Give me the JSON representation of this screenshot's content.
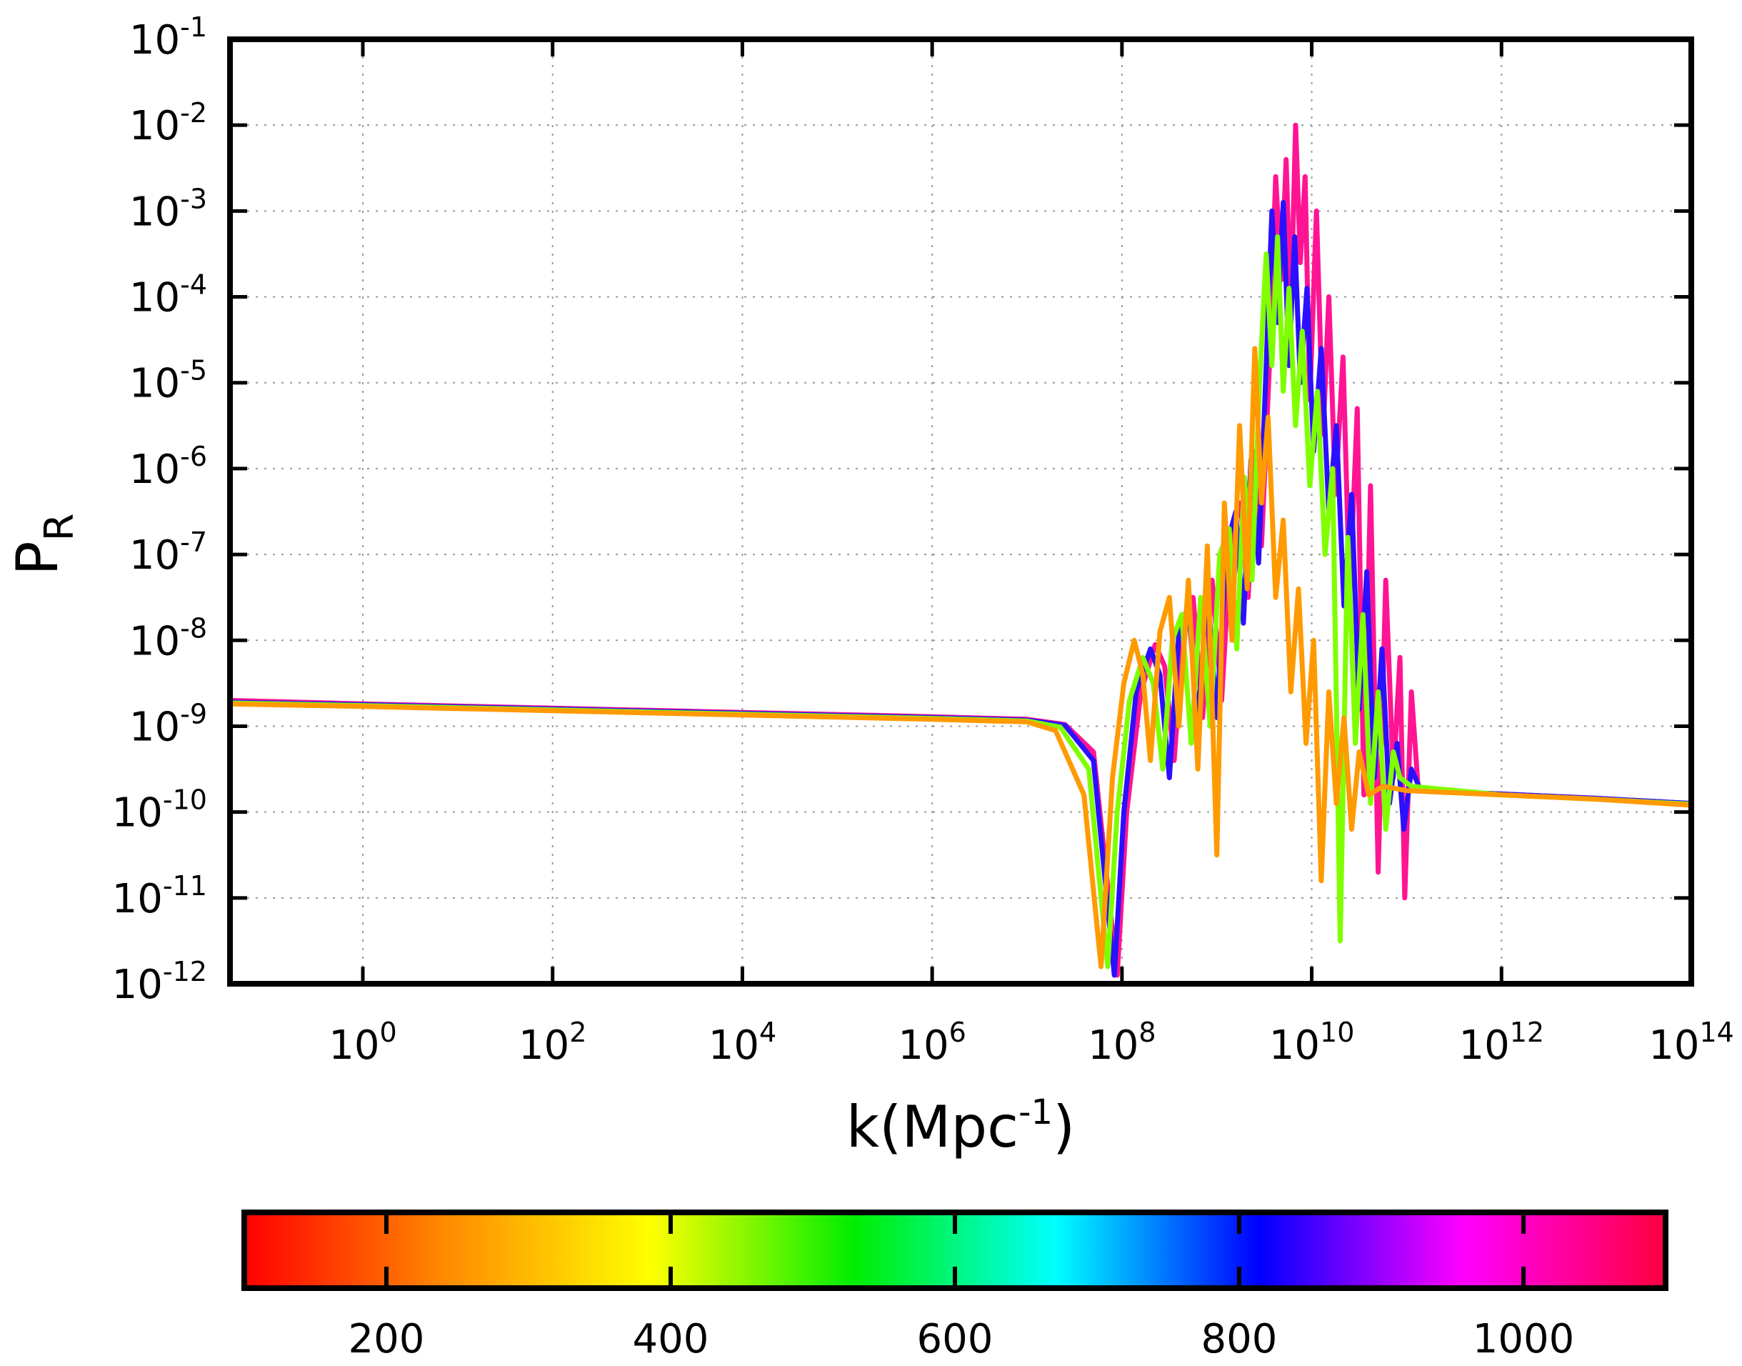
{
  "chart_data": {
    "type": "line",
    "title": "",
    "xlabel_base": "k(Mpc",
    "xlabel_exp": "-1",
    "xlabel_close": ")",
    "ylabel_base": "P",
    "ylabel_sub": "R",
    "x_scale": "log10",
    "y_scale": "log10",
    "xlim_log10": [
      -1.4,
      14
    ],
    "ylim_log10": [
      -12,
      -1
    ],
    "grid": true,
    "x_ticks": [
      {
        "exp": 0,
        "base": "10",
        "sup": "0"
      },
      {
        "exp": 2,
        "base": "10",
        "sup": "2"
      },
      {
        "exp": 4,
        "base": "10",
        "sup": "4"
      },
      {
        "exp": 6,
        "base": "10",
        "sup": "6"
      },
      {
        "exp": 8,
        "base": "10",
        "sup": "8"
      },
      {
        "exp": 10,
        "base": "10",
        "sup": "10"
      },
      {
        "exp": 12,
        "base": "10",
        "sup": "12"
      },
      {
        "exp": 14,
        "base": "10",
        "sup": "14"
      }
    ],
    "y_ticks": [
      {
        "exp": -12,
        "base": "10",
        "sup": "-12"
      },
      {
        "exp": -11,
        "base": "10",
        "sup": "-11"
      },
      {
        "exp": -10,
        "base": "10",
        "sup": "-10"
      },
      {
        "exp": -9,
        "base": "10",
        "sup": "-9"
      },
      {
        "exp": -8,
        "base": "10",
        "sup": "-8"
      },
      {
        "exp": -7,
        "base": "10",
        "sup": "-7"
      },
      {
        "exp": -6,
        "base": "10",
        "sup": "-6"
      },
      {
        "exp": -5,
        "base": "10",
        "sup": "-5"
      },
      {
        "exp": -4,
        "base": "10",
        "sup": "-4"
      },
      {
        "exp": -3,
        "base": "10",
        "sup": "-3"
      },
      {
        "exp": -2,
        "base": "10",
        "sup": "-2"
      },
      {
        "exp": -1,
        "base": "10",
        "sup": "-1"
      }
    ],
    "series": [
      {
        "name": "1050",
        "color": "#ff1493",
        "points_log10": [
          [
            -1.4,
            -8.7
          ],
          [
            0,
            -8.74
          ],
          [
            2,
            -8.79
          ],
          [
            4,
            -8.84
          ],
          [
            6,
            -8.89
          ],
          [
            7,
            -8.92
          ],
          [
            7.4,
            -8.98
          ],
          [
            7.7,
            -9.3
          ],
          [
            7.95,
            -11.9
          ],
          [
            8.05,
            -10.0
          ],
          [
            8.2,
            -8.6
          ],
          [
            8.35,
            -8.05
          ],
          [
            8.45,
            -8.3
          ],
          [
            8.55,
            -9.4
          ],
          [
            8.65,
            -7.9
          ],
          [
            8.75,
            -7.5
          ],
          [
            8.85,
            -8.9
          ],
          [
            8.95,
            -7.3
          ],
          [
            9.05,
            -8.7
          ],
          [
            9.15,
            -6.8
          ],
          [
            9.25,
            -6.4
          ],
          [
            9.33,
            -7.5
          ],
          [
            9.4,
            -5.8
          ],
          [
            9.47,
            -6.9
          ],
          [
            9.55,
            -4.9
          ],
          [
            9.62,
            -2.6
          ],
          [
            9.68,
            -3.8
          ],
          [
            9.73,
            -2.4
          ],
          [
            9.78,
            -4.2
          ],
          [
            9.83,
            -2.0
          ],
          [
            9.88,
            -3.6
          ],
          [
            9.93,
            -2.6
          ],
          [
            9.98,
            -5.2
          ],
          [
            10.05,
            -3.0
          ],
          [
            10.12,
            -5.6
          ],
          [
            10.18,
            -4.0
          ],
          [
            10.25,
            -6.3
          ],
          [
            10.33,
            -4.7
          ],
          [
            10.4,
            -7.5
          ],
          [
            10.48,
            -5.3
          ],
          [
            10.55,
            -9.8
          ],
          [
            10.62,
            -6.2
          ],
          [
            10.7,
            -10.7
          ],
          [
            10.78,
            -7.3
          ],
          [
            10.86,
            -9.6
          ],
          [
            10.93,
            -8.2
          ],
          [
            10.98,
            -11.0
          ],
          [
            11.05,
            -8.6
          ],
          [
            11.12,
            -9.7
          ],
          [
            11.2,
            -9.75
          ],
          [
            12,
            -9.79
          ],
          [
            13,
            -9.84
          ],
          [
            14,
            -9.9
          ]
        ]
      },
      {
        "name": "800",
        "color": "#2a10ff",
        "points_log10": [
          [
            -1.4,
            -8.72
          ],
          [
            0,
            -8.75
          ],
          [
            2,
            -8.8
          ],
          [
            4,
            -8.85
          ],
          [
            6,
            -8.9
          ],
          [
            7,
            -8.93
          ],
          [
            7.4,
            -8.99
          ],
          [
            7.7,
            -9.4
          ],
          [
            7.92,
            -11.9
          ],
          [
            8.02,
            -10.0
          ],
          [
            8.15,
            -8.6
          ],
          [
            8.3,
            -8.1
          ],
          [
            8.4,
            -8.4
          ],
          [
            8.5,
            -9.6
          ],
          [
            8.6,
            -7.9
          ],
          [
            8.7,
            -7.6
          ],
          [
            8.8,
            -9.0
          ],
          [
            8.9,
            -7.4
          ],
          [
            9.0,
            -8.9
          ],
          [
            9.1,
            -6.9
          ],
          [
            9.2,
            -6.5
          ],
          [
            9.28,
            -7.8
          ],
          [
            9.36,
            -5.9
          ],
          [
            9.44,
            -7.1
          ],
          [
            9.52,
            -4.8
          ],
          [
            9.58,
            -3.0
          ],
          [
            9.64,
            -4.3
          ],
          [
            9.7,
            -2.9
          ],
          [
            9.76,
            -4.8
          ],
          [
            9.82,
            -3.3
          ],
          [
            9.88,
            -5.0
          ],
          [
            9.95,
            -3.9
          ],
          [
            10.02,
            -5.8
          ],
          [
            10.1,
            -4.6
          ],
          [
            10.18,
            -6.5
          ],
          [
            10.26,
            -5.5
          ],
          [
            10.34,
            -7.6
          ],
          [
            10.42,
            -6.3
          ],
          [
            10.5,
            -8.8
          ],
          [
            10.58,
            -7.2
          ],
          [
            10.66,
            -9.6
          ],
          [
            10.74,
            -8.1
          ],
          [
            10.82,
            -9.9
          ],
          [
            10.9,
            -9.2
          ],
          [
            10.97,
            -10.2
          ],
          [
            11.05,
            -9.5
          ],
          [
            11.15,
            -9.75
          ],
          [
            12,
            -9.79
          ],
          [
            13,
            -9.84
          ],
          [
            14,
            -9.9
          ]
        ]
      },
      {
        "name": "400",
        "color": "#7fff00",
        "points_log10": [
          [
            -1.4,
            -8.73
          ],
          [
            0,
            -8.76
          ],
          [
            2,
            -8.81
          ],
          [
            4,
            -8.86
          ],
          [
            6,
            -8.91
          ],
          [
            7,
            -8.94
          ],
          [
            7.35,
            -9.01
          ],
          [
            7.65,
            -9.5
          ],
          [
            7.85,
            -11.8
          ],
          [
            7.95,
            -10.0
          ],
          [
            8.08,
            -8.7
          ],
          [
            8.22,
            -8.2
          ],
          [
            8.33,
            -8.5
          ],
          [
            8.43,
            -9.5
          ],
          [
            8.53,
            -8.0
          ],
          [
            8.63,
            -7.7
          ],
          [
            8.73,
            -9.2
          ],
          [
            8.83,
            -7.5
          ],
          [
            8.93,
            -9.0
          ],
          [
            9.03,
            -7.0
          ],
          [
            9.13,
            -6.7
          ],
          [
            9.21,
            -8.1
          ],
          [
            9.29,
            -6.1
          ],
          [
            9.37,
            -7.3
          ],
          [
            9.45,
            -5.0
          ],
          [
            9.52,
            -3.5
          ],
          [
            9.58,
            -4.8
          ],
          [
            9.64,
            -3.3
          ],
          [
            9.7,
            -5.1
          ],
          [
            9.76,
            -3.9
          ],
          [
            9.83,
            -5.5
          ],
          [
            9.9,
            -4.4
          ],
          [
            9.98,
            -6.2
          ],
          [
            10.06,
            -5.1
          ],
          [
            10.14,
            -7.0
          ],
          [
            10.22,
            -6.0
          ],
          [
            10.3,
            -11.5
          ],
          [
            10.38,
            -6.8
          ],
          [
            10.46,
            -9.2
          ],
          [
            10.54,
            -7.7
          ],
          [
            10.62,
            -9.9
          ],
          [
            10.7,
            -8.6
          ],
          [
            10.78,
            -10.2
          ],
          [
            10.86,
            -9.3
          ],
          [
            10.93,
            -9.6
          ],
          [
            11.05,
            -9.7
          ],
          [
            12,
            -9.8
          ],
          [
            13,
            -9.85
          ],
          [
            14,
            -9.91
          ]
        ]
      },
      {
        "name": "200",
        "color": "#ff9a00",
        "points_log10": [
          [
            -1.4,
            -8.74
          ],
          [
            0,
            -8.77
          ],
          [
            2,
            -8.82
          ],
          [
            4,
            -8.87
          ],
          [
            6,
            -8.92
          ],
          [
            7,
            -8.95
          ],
          [
            7.3,
            -9.05
          ],
          [
            7.6,
            -9.8
          ],
          [
            7.78,
            -11.8
          ],
          [
            7.9,
            -9.6
          ],
          [
            8.02,
            -8.5
          ],
          [
            8.13,
            -8.0
          ],
          [
            8.22,
            -8.4
          ],
          [
            8.3,
            -9.4
          ],
          [
            8.4,
            -7.9
          ],
          [
            8.5,
            -7.5
          ],
          [
            8.6,
            -9.0
          ],
          [
            8.7,
            -7.3
          ],
          [
            8.8,
            -9.5
          ],
          [
            8.9,
            -6.9
          ],
          [
            9.0,
            -10.5
          ],
          [
            9.08,
            -6.4
          ],
          [
            9.16,
            -8.0
          ],
          [
            9.24,
            -5.5
          ],
          [
            9.32,
            -7.4
          ],
          [
            9.4,
            -4.6
          ],
          [
            9.47,
            -6.4
          ],
          [
            9.54,
            -5.4
          ],
          [
            9.62,
            -7.5
          ],
          [
            9.7,
            -6.6
          ],
          [
            9.78,
            -8.6
          ],
          [
            9.86,
            -7.4
          ],
          [
            9.94,
            -9.2
          ],
          [
            10.02,
            -8.0
          ],
          [
            10.1,
            -10.8
          ],
          [
            10.18,
            -8.6
          ],
          [
            10.26,
            -9.9
          ],
          [
            10.34,
            -8.9
          ],
          [
            10.42,
            -10.2
          ],
          [
            10.5,
            -9.3
          ],
          [
            10.6,
            -9.8
          ],
          [
            10.75,
            -9.7
          ],
          [
            11.0,
            -9.75
          ],
          [
            12,
            -9.8
          ],
          [
            13,
            -9.85
          ],
          [
            14,
            -9.92
          ]
        ]
      }
    ],
    "colorbar": {
      "min": 100,
      "max": 1100,
      "ticks": [
        200,
        400,
        600,
        800,
        1000
      ],
      "tick_labels": [
        "200",
        "400",
        "600",
        "800",
        "1000"
      ],
      "palette": [
        "#ff0000",
        "#ff8c00",
        "#ffff00",
        "#00ee00",
        "#00ffff",
        "#0000ff",
        "#ff00ff",
        "#ff0040"
      ]
    }
  }
}
